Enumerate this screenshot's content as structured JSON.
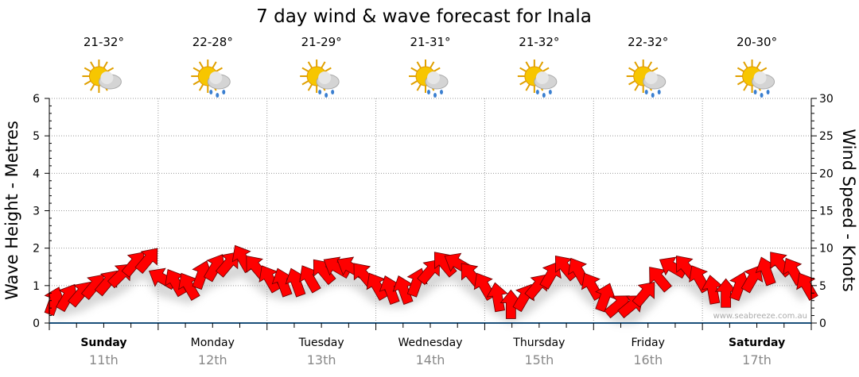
{
  "chart_data": {
    "type": "scatter",
    "title": "7 day wind & wave forecast for Inala",
    "ylabel_left": "Wave Height - Metres",
    "ylabel_right": "Wind Speed - Knots",
    "ylim_left": [
      0,
      6
    ],
    "ylim_right": [
      0,
      30
    ],
    "yticks_left": [
      "0",
      "1",
      "2",
      "3",
      "4",
      "5",
      "6"
    ],
    "yticks_right": [
      "0",
      "5",
      "10",
      "15",
      "20",
      "25",
      "30"
    ],
    "grid": true,
    "watermark": "www.seabreeze.com.au",
    "days": [
      {
        "name": "Sunday",
        "date": "11th",
        "temp": "21-32°",
        "icon": "sun-cloud-icon",
        "bold": true
      },
      {
        "name": "Monday",
        "date": "12th",
        "temp": "22-28°",
        "icon": "sun-cloud-rain-icon",
        "bold": false
      },
      {
        "name": "Tuesday",
        "date": "13th",
        "temp": "21-29°",
        "icon": "sun-cloud-rain-icon",
        "bold": false
      },
      {
        "name": "Wednesday",
        "date": "14th",
        "temp": "21-31°",
        "icon": "sun-cloud-rain-icon",
        "bold": false
      },
      {
        "name": "Thursday",
        "date": "15th",
        "temp": "21-32°",
        "icon": "sun-cloud-rain-icon",
        "bold": false
      },
      {
        "name": "Friday",
        "date": "16th",
        "temp": "22-32°",
        "icon": "sun-cloud-rain-icon",
        "bold": false
      },
      {
        "name": "Saturday",
        "date": "17th",
        "temp": "20-30°",
        "icon": "sun-cloud-rain-icon",
        "bold": true
      }
    ],
    "wind_series": {
      "name": "Wind speed (knots), 3-hourly",
      "values": [
        3,
        3.5,
        4,
        5,
        5.5,
        6.5,
        8,
        8.5,
        6,
        5.5,
        5,
        6.5,
        7.5,
        8,
        8.7,
        7.5,
        6,
        5.5,
        5.5,
        6,
        7,
        7.5,
        7.5,
        6.5,
        5,
        4.5,
        4.5,
        5.5,
        7,
        8,
        8,
        6.5,
        5,
        3.5,
        2.5,
        3.5,
        5,
        6.5,
        7.5,
        7,
        5,
        3.5,
        2.4,
        2.4,
        4,
        6,
        7.5,
        7.5,
        6,
        4.5,
        4,
        5,
        6,
        7,
        8,
        7,
        5
      ],
      "direction_deg": [
        20,
        30,
        40,
        40,
        40,
        45,
        40,
        40,
        300,
        330,
        330,
        20,
        30,
        40,
        330,
        320,
        330,
        340,
        340,
        330,
        320,
        300,
        300,
        320,
        330,
        340,
        340,
        20,
        40,
        320,
        300,
        320,
        330,
        350,
        0,
        30,
        40,
        30,
        320,
        330,
        330,
        20,
        50,
        50,
        40,
        320,
        300,
        320,
        330,
        350,
        0,
        20,
        30,
        340,
        320,
        330,
        330
      ]
    },
    "wave_series": {
      "name": "Wave height (m)",
      "values": []
    }
  }
}
